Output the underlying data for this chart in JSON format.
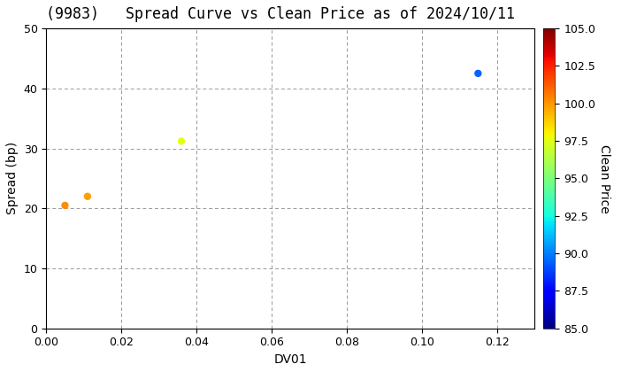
{
  "title": "(9983)   Spread Curve vs Clean Price as of 2024/10/11",
  "xlabel": "DV01",
  "ylabel": "Spread (bp)",
  "colorbar_label": "Clean Price",
  "points": [
    {
      "dv01": 0.005,
      "spread": 20.5,
      "clean_price": 100.2
    },
    {
      "dv01": 0.011,
      "spread": 22.0,
      "clean_price": 99.8
    },
    {
      "dv01": 0.036,
      "spread": 31.2,
      "clean_price": 97.5
    },
    {
      "dv01": 0.115,
      "spread": 42.5,
      "clean_price": 89.5
    }
  ],
  "xlim": [
    0.0,
    0.13
  ],
  "ylim": [
    0,
    50
  ],
  "xticks": [
    0.0,
    0.02,
    0.04,
    0.06,
    0.08,
    0.1,
    0.12
  ],
  "yticks": [
    0,
    10,
    20,
    30,
    40,
    50
  ],
  "cmap": "jet",
  "clim": [
    85.0,
    105.0
  ],
  "colorbar_ticks": [
    85.0,
    87.5,
    90.0,
    92.5,
    95.0,
    97.5,
    100.0,
    102.5,
    105.0
  ],
  "marker_size": 25,
  "background_color": "#ffffff",
  "title_fontsize": 12,
  "axis_label_fontsize": 10,
  "tick_fontsize": 9,
  "colorbar_tick_fontsize": 9,
  "colorbar_label_fontsize": 10
}
